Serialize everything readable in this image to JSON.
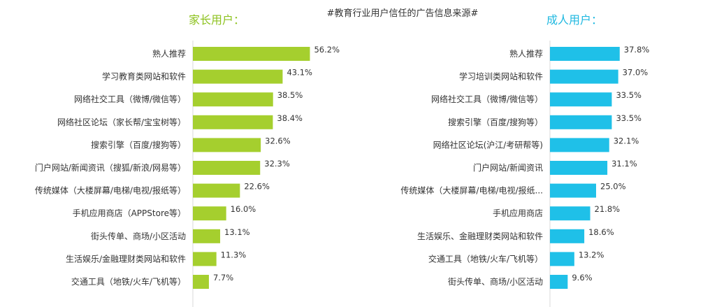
{
  "title": "#教育行业用户信任的广告信息来源#",
  "chart_data": [
    {
      "type": "bar",
      "orientation": "horizontal",
      "title": "家长用户：",
      "color": "#a5cf2e",
      "title_color": "#8dc21f",
      "categories": [
        "熟人推荐",
        "学习教育类网站和软件",
        "网络社交工具（微博/微信等）",
        "网络社区论坛（家长帮/宝宝树等）",
        "搜索引擎（百度/搜狗等）",
        "门户网站/新闻资讯（搜狐/新浪/网易等）",
        "传统媒体（大楼屏幕/电梯/电视/报纸等）",
        "手机应用商店（APPStore等）",
        "街头传单、商场/小区活动",
        "生活娱乐/金融理财类网站和软件",
        "交通工具（地铁/火车/飞机等）"
      ],
      "values": [
        56.2,
        43.1,
        38.5,
        38.4,
        32.6,
        32.3,
        22.6,
        16.0,
        13.1,
        11.3,
        7.7
      ],
      "labels": [
        "56.2%",
        "43.1%",
        "38.5%",
        "38.4%",
        "32.6%",
        "32.3%",
        "22.6%",
        "16.0%",
        "13.1%",
        "11.3%",
        "7.7%"
      ],
      "xlim": [
        0,
        100
      ]
    },
    {
      "type": "bar",
      "orientation": "horizontal",
      "title": "成人用户：",
      "color": "#1fc0e8",
      "title_color": "#1fb8e0",
      "categories": [
        "熟人推荐",
        "学习培训类网站和软件",
        "网络社交工具（微博/微信等）",
        "搜索引擎（百度/搜狗等）",
        "网络社区论坛(沪江/考研帮等)",
        "门户网站/新闻资讯",
        "传统媒体（大楼屏幕/电梯/电视/报纸...",
        "手机应用商店",
        "生活娱乐、金融理财类网站和软件",
        "交通工具（地铁/火车/飞机等）",
        "街头传单、商场/小区活动"
      ],
      "values": [
        37.8,
        37.0,
        33.5,
        33.5,
        32.1,
        31.1,
        25.0,
        21.8,
        18.6,
        13.2,
        9.6
      ],
      "labels": [
        "37.8%",
        "37.0%",
        "33.5%",
        "33.5%",
        "32.1%",
        "31.1%",
        "25.0%",
        "21.8%",
        "18.6%",
        "13.2%",
        "9.6%"
      ],
      "xlim": [
        0,
        100
      ]
    }
  ]
}
